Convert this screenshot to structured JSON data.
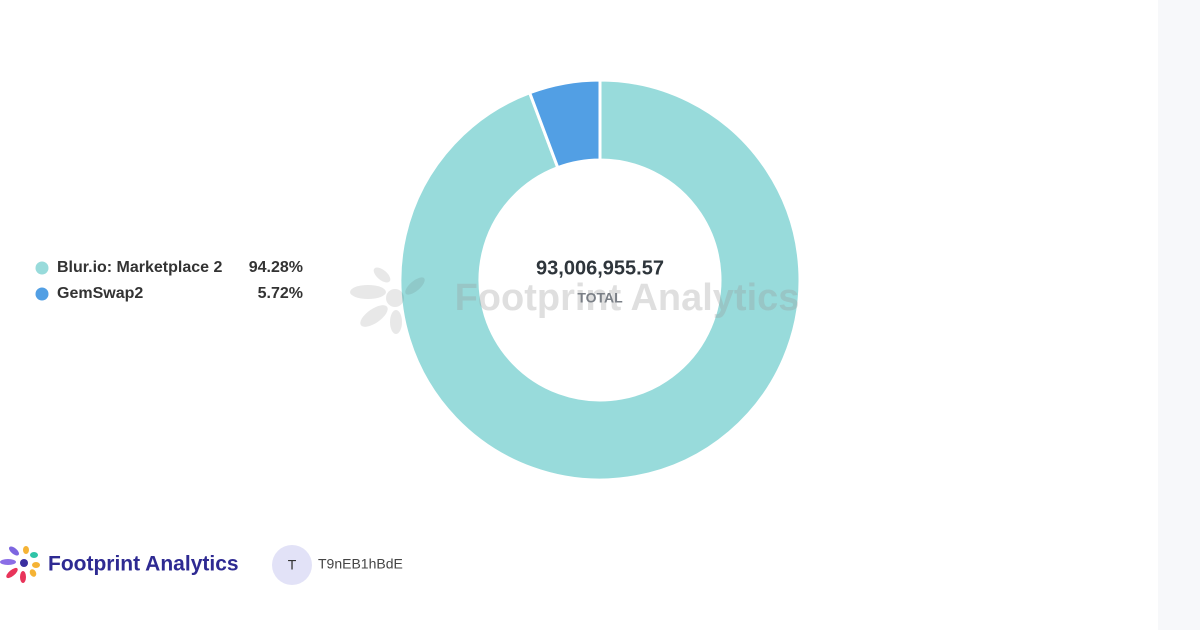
{
  "chart_data": {
    "type": "pie",
    "categories": [
      "Blur.io: Marketplace 2",
      "GemSwap2"
    ],
    "values": [
      94.28,
      5.72
    ],
    "value_labels": [
      "94.28%",
      "5.72%"
    ],
    "colors": [
      "#98dbdb",
      "#529fe4"
    ],
    "total": "93,006,955.57",
    "total_label": "TOTAL",
    "watermark": "Footprint Analytics"
  },
  "footer": {
    "brand": "Footprint Analytics",
    "avatar": "T",
    "user": "T9nEB1hBdE"
  }
}
